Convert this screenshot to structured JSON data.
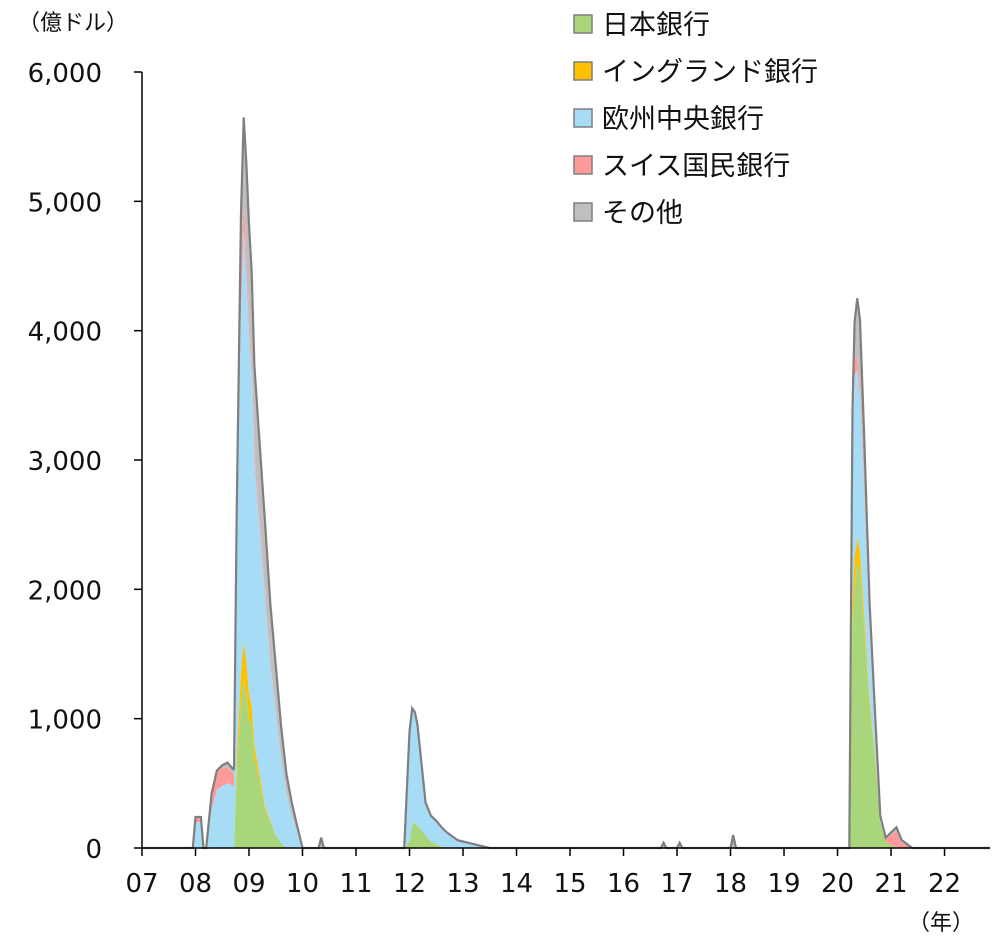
{
  "chart_data": {
    "type": "area",
    "y_unit_label": "（億ドル）",
    "x_unit_label": "（年）",
    "xlim": [
      2007,
      2022.85
    ],
    "ylim": [
      0,
      6000
    ],
    "y_ticks": [
      {
        "value": 0,
        "label": "0"
      },
      {
        "value": 1000,
        "label": "1,000"
      },
      {
        "value": 2000,
        "label": "2,000"
      },
      {
        "value": 3000,
        "label": "3,000"
      },
      {
        "value": 4000,
        "label": "4,000"
      },
      {
        "value": 5000,
        "label": "5,000"
      },
      {
        "value": 6000,
        "label": "6,000"
      }
    ],
    "x_ticks": [
      {
        "value": 2007,
        "label": "07"
      },
      {
        "value": 2008,
        "label": "08"
      },
      {
        "value": 2009,
        "label": "09"
      },
      {
        "value": 2010,
        "label": "10"
      },
      {
        "value": 2011,
        "label": "11"
      },
      {
        "value": 2012,
        "label": "12"
      },
      {
        "value": 2013,
        "label": "13"
      },
      {
        "value": 2014,
        "label": "14"
      },
      {
        "value": 2015,
        "label": "15"
      },
      {
        "value": 2016,
        "label": "16"
      },
      {
        "value": 2017,
        "label": "17"
      },
      {
        "value": 2018,
        "label": "18"
      },
      {
        "value": 2019,
        "label": "19"
      },
      {
        "value": 2020,
        "label": "20"
      },
      {
        "value": 2021,
        "label": "21"
      },
      {
        "value": 2022,
        "label": "22"
      }
    ],
    "x": [
      2007.0,
      2007.95,
      2008.0,
      2008.1,
      2008.15,
      2008.2,
      2008.3,
      2008.4,
      2008.5,
      2008.6,
      2008.7,
      2008.72,
      2008.77,
      2008.85,
      2008.9,
      2008.95,
      2009.0,
      2009.05,
      2009.1,
      2009.2,
      2009.3,
      2009.4,
      2009.5,
      2009.6,
      2009.7,
      2009.8,
      2009.9,
      2010.0,
      2010.3,
      2010.35,
      2010.4,
      2010.5,
      2011.0,
      2011.8,
      2011.9,
      2012.0,
      2012.05,
      2012.1,
      2012.15,
      2012.2,
      2012.3,
      2012.4,
      2012.5,
      2012.6,
      2012.7,
      2012.8,
      2012.9,
      2013.0,
      2013.1,
      2013.2,
      2013.3,
      2013.4,
      2013.5,
      2013.6,
      2014.0,
      2015.0,
      2016.0,
      2016.7,
      2016.75,
      2016.8,
      2017.0,
      2017.05,
      2017.1,
      2017.9,
      2018.0,
      2018.05,
      2018.1,
      2019.0,
      2019.9,
      2020.0,
      2020.15,
      2020.22,
      2020.28,
      2020.32,
      2020.37,
      2020.42,
      2020.5,
      2020.6,
      2020.7,
      2020.8,
      2020.9,
      2021.0,
      2021.1,
      2021.2,
      2021.4,
      2022.0,
      2022.85
    ],
    "series": [
      {
        "name": "日本銀行",
        "color": "#a9d67a",
        "values": [
          0,
          0,
          0,
          0,
          0,
          0,
          0,
          0,
          0,
          0,
          0,
          0,
          600,
          1100,
          1300,
          1200,
          1000,
          950,
          700,
          500,
          300,
          200,
          100,
          40,
          0,
          0,
          0,
          0,
          0,
          0,
          0,
          0,
          0,
          0,
          0,
          50,
          180,
          200,
          170,
          150,
          100,
          50,
          30,
          10,
          0,
          0,
          0,
          0,
          0,
          0,
          0,
          0,
          0,
          0,
          0,
          0,
          0,
          0,
          0,
          0,
          0,
          0,
          0,
          0,
          0,
          0,
          0,
          0,
          0,
          0,
          0,
          0,
          1700,
          2000,
          2200,
          2150,
          1700,
          1100,
          700,
          200,
          50,
          20,
          10,
          0,
          0,
          0,
          0
        ]
      },
      {
        "name": "イングランド銀行",
        "color": "#ffc000",
        "values": [
          0,
          0,
          0,
          0,
          0,
          0,
          0,
          0,
          0,
          0,
          0,
          0,
          100,
          250,
          300,
          250,
          200,
          150,
          100,
          60,
          20,
          10,
          0,
          0,
          0,
          0,
          0,
          0,
          0,
          0,
          0,
          0,
          0,
          0,
          0,
          0,
          0,
          0,
          0,
          0,
          0,
          0,
          0,
          0,
          0,
          0,
          0,
          0,
          0,
          0,
          0,
          0,
          0,
          0,
          0,
          0,
          0,
          0,
          0,
          0,
          0,
          0,
          0,
          0,
          0,
          0,
          0,
          0,
          0,
          0,
          0,
          0,
          200,
          250,
          200,
          150,
          100,
          50,
          30,
          0,
          0,
          0,
          0,
          0,
          0,
          0,
          0
        ]
      },
      {
        "name": "欧州中央銀行",
        "color": "#a7dcf7",
        "values": [
          0,
          0,
          200,
          200,
          0,
          0,
          300,
          450,
          480,
          500,
          480,
          480,
          1500,
          2800,
          3200,
          3000,
          2800,
          2600,
          2200,
          1900,
          1600,
          1200,
          950,
          650,
          420,
          250,
          120,
          0,
          0,
          0,
          0,
          0,
          0,
          0,
          0,
          850,
          900,
          850,
          780,
          600,
          250,
          200,
          180,
          150,
          120,
          90,
          60,
          50,
          40,
          30,
          20,
          10,
          0,
          0,
          0,
          0,
          0,
          0,
          0,
          0,
          0,
          0,
          0,
          0,
          0,
          0,
          0,
          0,
          0,
          0,
          0,
          0,
          1200,
          1400,
          1300,
          1200,
          900,
          500,
          200,
          20,
          0,
          0,
          0,
          0,
          0,
          0,
          0
        ]
      },
      {
        "name": "スイス国民銀行",
        "color": "#ff9a9a",
        "values": [
          0,
          0,
          40,
          40,
          0,
          0,
          120,
          150,
          140,
          120,
          100,
          100,
          250,
          350,
          200,
          150,
          120,
          100,
          80,
          60,
          40,
          20,
          10,
          0,
          0,
          0,
          0,
          0,
          0,
          0,
          0,
          0,
          0,
          0,
          0,
          0,
          0,
          0,
          0,
          0,
          0,
          0,
          0,
          0,
          0,
          0,
          0,
          0,
          0,
          0,
          0,
          0,
          0,
          0,
          0,
          0,
          0,
          0,
          0,
          0,
          0,
          0,
          0,
          0,
          0,
          0,
          0,
          0,
          0,
          0,
          0,
          0,
          100,
          120,
          100,
          80,
          60,
          40,
          20,
          0,
          30,
          80,
          120,
          40,
          0,
          0,
          0
        ]
      },
      {
        "name": "その他",
        "color": "#bfbfbf",
        "values": [
          0,
          0,
          0,
          0,
          0,
          0,
          0,
          0,
          20,
          40,
          30,
          30,
          150,
          400,
          650,
          700,
          700,
          650,
          650,
          600,
          550,
          450,
          350,
          250,
          150,
          100,
          50,
          0,
          0,
          80,
          0,
          0,
          0,
          0,
          0,
          0,
          0,
          0,
          0,
          0,
          0,
          0,
          0,
          0,
          0,
          0,
          0,
          0,
          0,
          0,
          0,
          0,
          0,
          0,
          0,
          0,
          0,
          0,
          40,
          0,
          0,
          40,
          0,
          0,
          0,
          100,
          0,
          0,
          0,
          0,
          0,
          0,
          200,
          300,
          450,
          500,
          400,
          200,
          100,
          30,
          0,
          20,
          30,
          20,
          0,
          0,
          0
        ]
      }
    ],
    "legend": {
      "placement": "top-right",
      "order": [
        "日本銀行",
        "イングランド銀行",
        "欧州中央銀行",
        "スイス国民銀行",
        "その他"
      ]
    },
    "outline_color": "#7f7f7f",
    "grid": false
  }
}
